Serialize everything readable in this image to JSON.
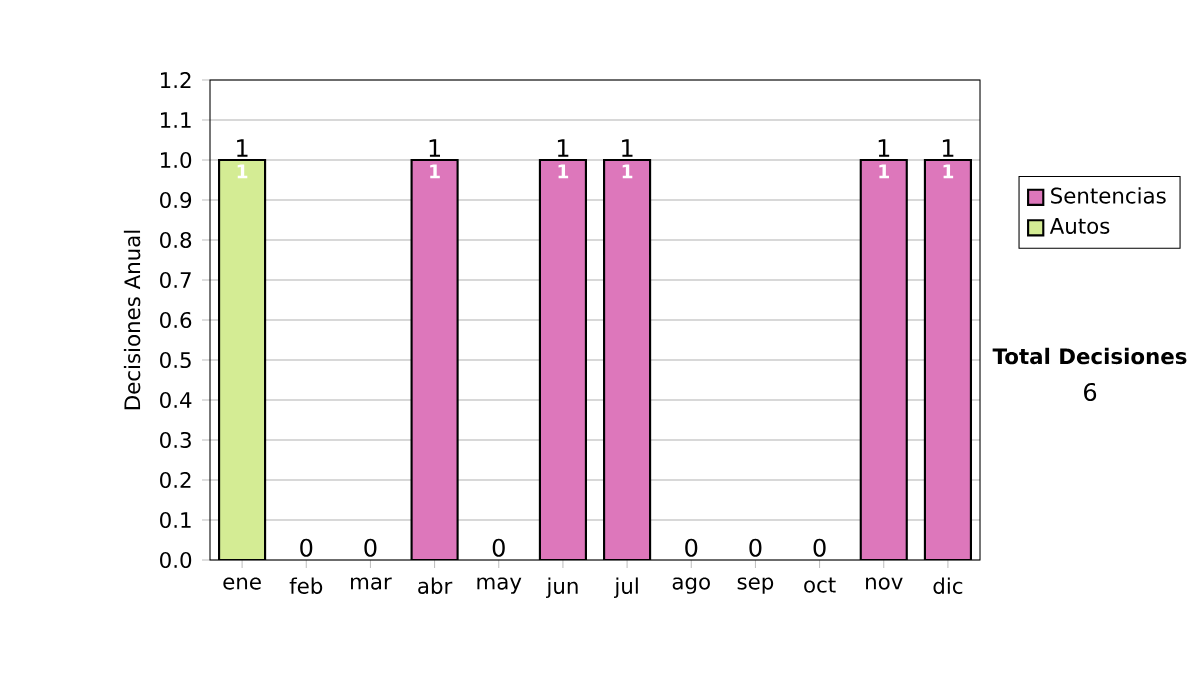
{
  "chart_data": {
    "type": "bar",
    "stacked": true,
    "ylabel": "Decisiones Anual",
    "categories": [
      "ene",
      "feb",
      "mar",
      "abr",
      "may",
      "jun",
      "jul",
      "ago",
      "sep",
      "oct",
      "nov",
      "dic"
    ],
    "series": [
      {
        "name": "Sentencias",
        "color": "#dd77bb",
        "values": [
          0,
          0,
          0,
          1,
          0,
          1,
          1,
          0,
          0,
          0,
          1,
          1
        ],
        "value_labels": [
          null,
          null,
          null,
          "1",
          null,
          "1",
          "1",
          null,
          null,
          null,
          "1",
          "1"
        ]
      },
      {
        "name": "Autos",
        "color": "#d4ec94",
        "values": [
          1,
          0,
          0,
          0,
          0,
          0,
          0,
          0,
          0,
          0,
          0,
          0
        ],
        "value_labels": [
          "1",
          null,
          null,
          null,
          null,
          null,
          null,
          null,
          null,
          null,
          null,
          null
        ]
      }
    ],
    "totals": [
      "1",
      "0",
      "0",
      "1",
      "0",
      "1",
      "1",
      "0",
      "0",
      "0",
      "1",
      "1"
    ],
    "ylim": [
      0,
      1.2
    ],
    "yticks": [
      {
        "value": 0,
        "label": "0.0"
      },
      0.1,
      0.2,
      0.3,
      0.4,
      0.5,
      0.6,
      0.7,
      0.8,
      0.9,
      {
        "value": 1,
        "label": "1.0"
      },
      1.1,
      1.2
    ],
    "grid": "y",
    "legend": "right",
    "annotations": [
      "Total Decisiones",
      "6"
    ]
  }
}
